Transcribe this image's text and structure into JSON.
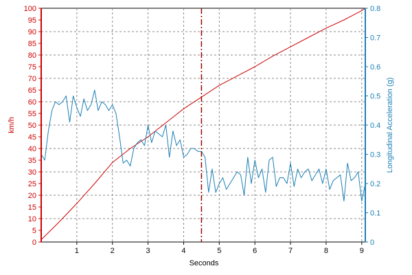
{
  "chart_data": {
    "type": "line",
    "title": "",
    "xlabel": "Seconds",
    "xlim": [
      0,
      9.1
    ],
    "x_ticks": [
      1,
      2,
      3,
      4,
      5,
      6,
      7,
      8,
      9
    ],
    "grid": true,
    "left_axis": {
      "label": "km/h",
      "ylim": [
        0,
        100
      ],
      "ticks": [
        0,
        5,
        10,
        15,
        20,
        25,
        30,
        35,
        40,
        45,
        50,
        55,
        60,
        65,
        70,
        75,
        80,
        85,
        90,
        95,
        100
      ],
      "color": "#cc0000"
    },
    "right_axis": {
      "label": "Longitudinal Acceleration (g)",
      "ylim": [
        0,
        0.8
      ],
      "ticks": [
        0,
        0.1,
        0.2,
        0.3,
        0.4,
        0.5,
        0.6,
        0.7,
        0.8
      ],
      "color": "#1a7fb5"
    },
    "marker": {
      "x": 4.5,
      "color": "#990000"
    },
    "series": [
      {
        "axis": "left",
        "color": "#cc0000",
        "x": [
          0,
          0.5,
          1.0,
          1.5,
          2.0,
          2.5,
          3.0,
          3.5,
          4.0,
          4.5,
          5.0,
          5.5,
          6.0,
          6.5,
          7.0,
          7.5,
          8.0,
          8.5,
          9.0,
          9.1
        ],
        "y": [
          1,
          8.5,
          16.5,
          25,
          34,
          40,
          45,
          51,
          57,
          62,
          67,
          71,
          75,
          79.5,
          83.5,
          87.5,
          91.5,
          95,
          99,
          100
        ]
      },
      {
        "axis": "right",
        "color": "#1a7fb5",
        "x": [
          0,
          0.1,
          0.2,
          0.3,
          0.4,
          0.5,
          0.6,
          0.7,
          0.8,
          0.9,
          1.0,
          1.1,
          1.2,
          1.3,
          1.4,
          1.5,
          1.6,
          1.7,
          1.8,
          1.9,
          2.0,
          2.1,
          2.2,
          2.3,
          2.4,
          2.5,
          2.6,
          2.7,
          2.8,
          2.9,
          3.0,
          3.1,
          3.2,
          3.3,
          3.4,
          3.5,
          3.6,
          3.7,
          3.8,
          3.9,
          4.0,
          4.1,
          4.2,
          4.3,
          4.4,
          4.5,
          4.6,
          4.7,
          4.8,
          4.9,
          5.0,
          5.1,
          5.2,
          5.3,
          5.4,
          5.5,
          5.6,
          5.7,
          5.8,
          5.9,
          6.0,
          6.1,
          6.2,
          6.3,
          6.4,
          6.5,
          6.6,
          6.7,
          6.8,
          6.9,
          7.0,
          7.1,
          7.2,
          7.3,
          7.4,
          7.5,
          7.6,
          7.7,
          7.8,
          7.9,
          8.0,
          8.1,
          8.2,
          8.3,
          8.4,
          8.5,
          8.6,
          8.7,
          8.8,
          8.9,
          9.0,
          9.1
        ],
        "y": [
          0.3,
          0.28,
          0.38,
          0.45,
          0.48,
          0.47,
          0.48,
          0.5,
          0.41,
          0.5,
          0.46,
          0.43,
          0.49,
          0.45,
          0.47,
          0.52,
          0.45,
          0.48,
          0.47,
          0.45,
          0.47,
          0.44,
          0.36,
          0.27,
          0.28,
          0.26,
          0.32,
          0.34,
          0.35,
          0.33,
          0.4,
          0.34,
          0.38,
          0.37,
          0.36,
          0.4,
          0.29,
          0.38,
          0.33,
          0.35,
          0.29,
          0.3,
          0.32,
          0.32,
          0.31,
          0.31,
          0.29,
          0.17,
          0.25,
          0.17,
          0.2,
          0.22,
          0.18,
          0.2,
          0.22,
          0.24,
          0.23,
          0.16,
          0.29,
          0.2,
          0.28,
          0.22,
          0.25,
          0.17,
          0.28,
          0.29,
          0.19,
          0.22,
          0.22,
          0.2,
          0.27,
          0.19,
          0.25,
          0.22,
          0.24,
          0.25,
          0.21,
          0.23,
          0.25,
          0.2,
          0.25,
          0.18,
          0.21,
          0.22,
          0.23,
          0.14,
          0.27,
          0.21,
          0.22,
          0.24,
          0.14,
          0.2
        ]
      }
    ]
  }
}
